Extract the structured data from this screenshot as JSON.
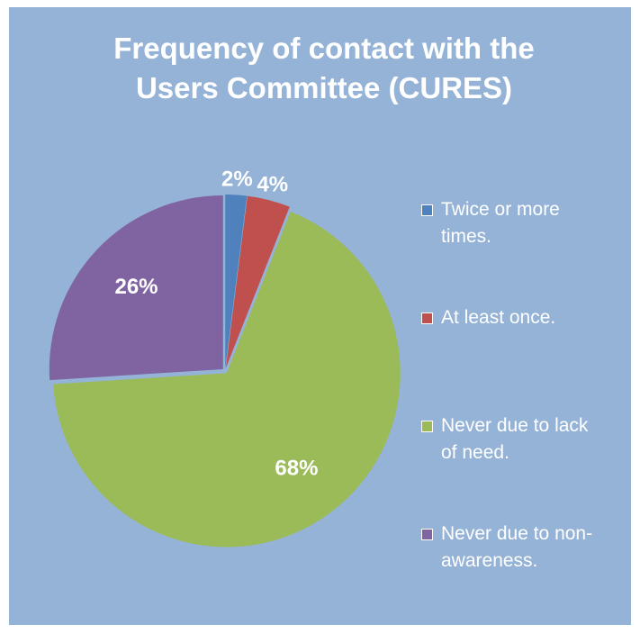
{
  "chart_data": {
    "type": "pie",
    "title": "Frequency of contact with the Users Committee (CURES)",
    "categories": [
      "Twice or more times.",
      "At least once.",
      "Never due to lack of need.",
      "Never due to non-awareness."
    ],
    "values": [
      2,
      4,
      68,
      26
    ],
    "value_labels": [
      "2%",
      "4%",
      "68%",
      "26%"
    ],
    "colors": [
      "#4f81bd",
      "#c0504d",
      "#9bbb59",
      "#8064a2"
    ],
    "legend": "right"
  }
}
